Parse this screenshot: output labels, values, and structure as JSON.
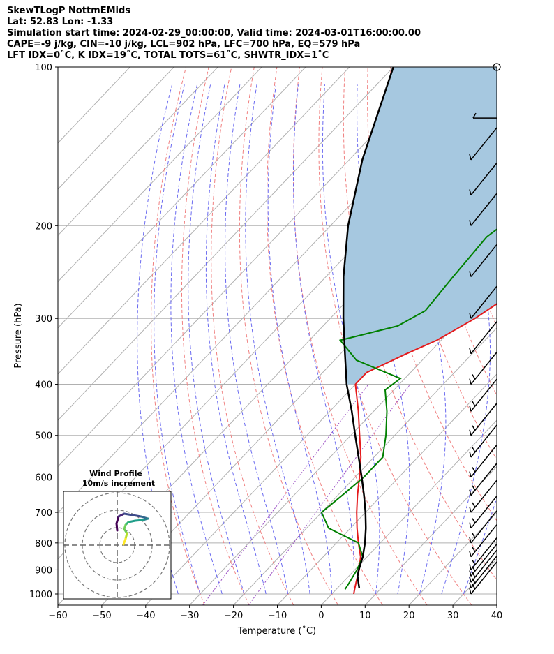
{
  "header": {
    "line1": "SkewTLogP NottmEMids",
    "line2": "Lat: 52.83   Lon: -1.33",
    "line3": "Simulation start time: 2024-02-29_00:00:00, Valid time: 2024-03-01T16:00:00.00",
    "line4": "CAPE=-9 j/kg, CIN=-10 j/kg, LCL=902 hPa, LFC=700 hPa, EQ=579 hPa",
    "line5": "LFT IDX=0˚C, K IDX=19˚C, TOTAL TOTS=61˚C, SHWTR_IDX=1˚C"
  },
  "chart_data": {
    "type": "line",
    "subtype": "skew-t log-p",
    "xlabel": "Temperature (˚C)",
    "ylabel": "Pressure (hPa)",
    "xlim": [
      -60,
      40
    ],
    "ylim": [
      1050,
      100
    ],
    "y_scale": "log",
    "x_ticks": [
      -60,
      -50,
      -40,
      -30,
      -20,
      -10,
      0,
      10,
      20,
      30,
      40
    ],
    "x_tick_labels": [
      "−60",
      "−50",
      "−40",
      "−30",
      "−20",
      "−10",
      "0",
      "10",
      "20",
      "30",
      "40"
    ],
    "y_ticks": [
      1000,
      900,
      800,
      700,
      600,
      500,
      400,
      300,
      200,
      100
    ],
    "grid": true,
    "colors": {
      "temperature": "#e41a1c",
      "dewpoint": "#008000",
      "parcel": "#000000",
      "cape_fill": "#a6c8e0",
      "dry_adiabats": "#f08080",
      "moist_adiabats": "#6a6af0",
      "mixing_ratio": "#9b4fc4",
      "isotherms": "#b0b0b0"
    },
    "series": [
      {
        "pressure": [
          1000,
          975,
          950,
          925,
          900,
          850,
          800,
          750,
          700,
          650,
          600,
          550,
          500,
          450,
          400,
          380,
          350,
          330,
          300,
          270,
          250,
          230,
          200,
          180,
          160,
          140,
          130,
          120,
          110,
          100
        ],
        "values": [
          5,
          4,
          3,
          2,
          1,
          -1.5,
          -5,
          -8.5,
          -12,
          -15.5,
          -19,
          -23,
          -28,
          -33.5,
          -40,
          -40,
          -35,
          -31,
          -27,
          -24,
          -21.5,
          -19.5,
          -17,
          -16,
          -18,
          -21,
          -20,
          -21,
          -22,
          -23
        ]
      },
      {
        "pressure": [
          980,
          950,
          925,
          900,
          850,
          800,
          750,
          700,
          650,
          600,
          550,
          500,
          450,
          410,
          390,
          360,
          330,
          310,
          290,
          250,
          210,
          200,
          180,
          160,
          140,
          120,
          100
        ],
        "values": [
          2,
          1.5,
          1,
          0.5,
          -1,
          -5,
          -15,
          -20,
          -19,
          -18,
          -18,
          -22,
          -27,
          -32,
          -31,
          -45,
          -53,
          -43,
          -40,
          -41,
          -42,
          -41,
          -42,
          -43,
          -44,
          -46,
          -48
        ]
      },
      {
        "pressure": [
          975,
          950,
          925,
          902,
          850,
          800,
          750,
          700,
          650,
          600,
          550,
          500,
          450,
          400,
          350,
          300,
          250,
          200,
          150,
          100
        ],
        "values": [
          5,
          3.5,
          2,
          1,
          -1,
          -3.5,
          -6.5,
          -10,
          -14,
          -18.5,
          -23.5,
          -29,
          -35,
          -42,
          -49,
          -57,
          -66,
          -76,
          -87,
          -100
        ]
      }
    ],
    "wind_barbs": {
      "pressure": [
        1000,
        975,
        950,
        925,
        900,
        850,
        800,
        750,
        700,
        650,
        600,
        550,
        500,
        450,
        400,
        350,
        300,
        250,
        200,
        175,
        150,
        125,
        100
      ]
    },
    "hodograph": {
      "title_line1": "Wind Profile",
      "title_line2": "10m/s increment"
    }
  }
}
